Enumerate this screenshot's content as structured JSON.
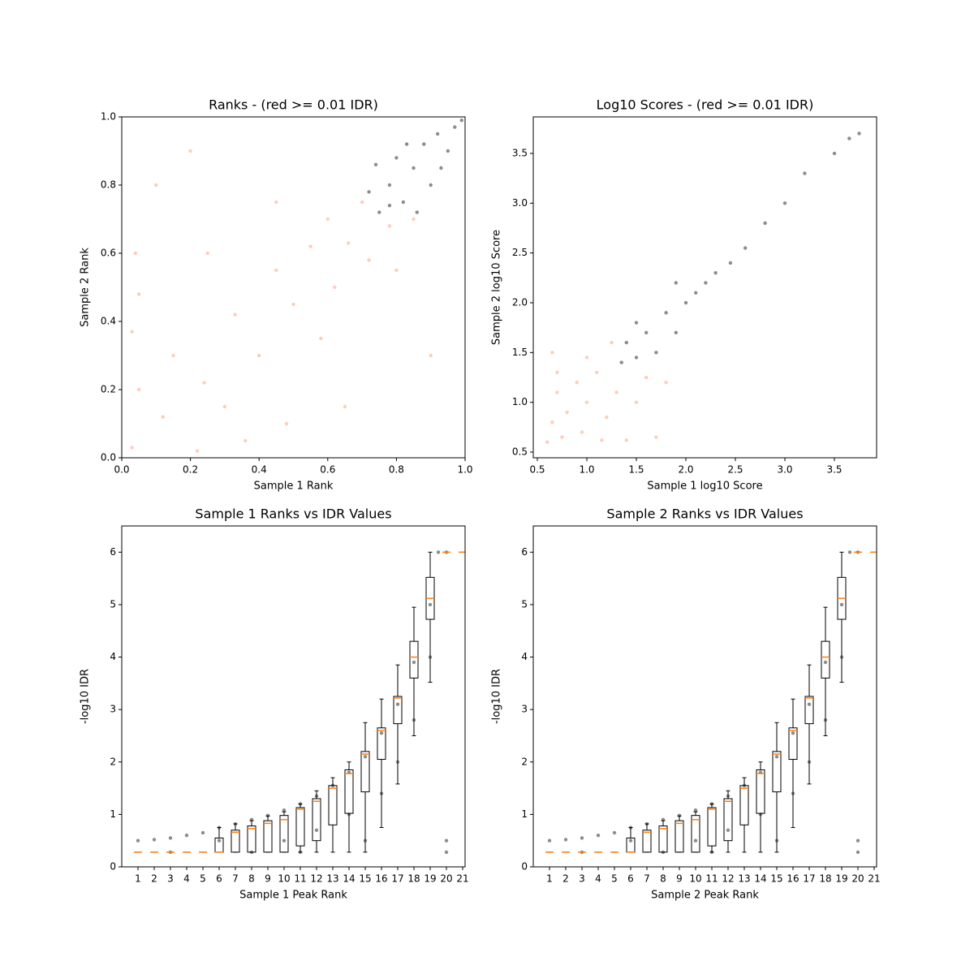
{
  "chart_data": [
    {
      "type": "scatter",
      "title": "Ranks - (red >= 0.01 IDR)",
      "x_label": "Sample 1 Rank",
      "y_label": "Sample 2 Rank",
      "xlim": [
        0,
        1
      ],
      "ylim": [
        0,
        1
      ],
      "xticks": [
        {
          "value": 0,
          "label": "0.0"
        },
        {
          "value": 0.2,
          "label": "0.2"
        },
        {
          "value": 0.4,
          "label": "0.4"
        },
        {
          "value": 0.6,
          "label": "0.6"
        },
        {
          "value": 0.8,
          "label": "0.8"
        },
        {
          "value": 1,
          "label": "1.0"
        }
      ],
      "yticks": [
        {
          "value": 0,
          "label": "0.0"
        },
        {
          "value": 0.2,
          "label": "0.2"
        },
        {
          "value": 0.4,
          "label": "0.4"
        },
        {
          "value": 0.6,
          "label": "0.6"
        },
        {
          "value": 0.8,
          "label": "0.8"
        },
        {
          "value": 1,
          "label": "1.0"
        }
      ],
      "series": [
        {
          "color": "#ff8f6e",
          "x": [
            0.03,
            0.05,
            0.03,
            0.05,
            0.04,
            0.12,
            0.15,
            0.22,
            0.24,
            0.3,
            0.33,
            0.36,
            0.4,
            0.45,
            0.48,
            0.5,
            0.55,
            0.58,
            0.6,
            0.62,
            0.66,
            0.7,
            0.72,
            0.78,
            0.8,
            0.85,
            0.9,
            0.25,
            0.1,
            0.2,
            0.65,
            0.45
          ],
          "y": [
            0.03,
            0.2,
            0.37,
            0.48,
            0.6,
            0.12,
            0.3,
            0.02,
            0.22,
            0.15,
            0.42,
            0.05,
            0.3,
            0.55,
            0.1,
            0.45,
            0.62,
            0.35,
            0.7,
            0.5,
            0.63,
            0.75,
            0.58,
            0.68,
            0.55,
            0.7,
            0.3,
            0.6,
            0.8,
            0.9,
            0.15,
            0.75
          ]
        },
        {
          "color": "#000000",
          "x": [
            0.72,
            0.75,
            0.78,
            0.8,
            0.82,
            0.85,
            0.88,
            0.9,
            0.92,
            0.95,
            0.97,
            0.99,
            0.74,
            0.86,
            0.93,
            0.78,
            0.83
          ],
          "y": [
            0.78,
            0.72,
            0.8,
            0.88,
            0.75,
            0.85,
            0.92,
            0.8,
            0.95,
            0.9,
            0.97,
            0.99,
            0.86,
            0.72,
            0.85,
            0.74,
            0.92
          ]
        }
      ]
    },
    {
      "type": "scatter",
      "title": "Log10 Scores - (red >= 0.01 IDR)",
      "x_label": "Sample 1 log10 Score",
      "y_label": "Sample 2 log10 Score",
      "xlim": [
        0.459,
        3.926
      ],
      "ylim": [
        0.443,
        3.867
      ],
      "xticks": [
        0.5,
        {
          "value": 1,
          "label": "1.0"
        },
        1.5,
        {
          "value": 2,
          "label": "2.0"
        },
        2.5,
        {
          "value": 3,
          "label": "3.0"
        },
        3.5
      ],
      "yticks": [
        0.5,
        {
          "value": 1,
          "label": "1.0"
        },
        1.5,
        {
          "value": 2,
          "label": "2.0"
        },
        2.5,
        {
          "value": 3,
          "label": "3.0"
        },
        3.5
      ],
      "series": [
        {
          "color": "#ff8f6e",
          "x": [
            0.6,
            0.65,
            0.7,
            0.75,
            0.8,
            0.9,
            0.95,
            1.0,
            1.1,
            1.15,
            1.2,
            1.3,
            1.4,
            1.5,
            1.6,
            1.7,
            1.8,
            0.65,
            0.7,
            1.25,
            1.0
          ],
          "y": [
            0.6,
            0.8,
            1.1,
            0.65,
            0.9,
            1.2,
            0.7,
            1.0,
            1.3,
            0.62,
            0.85,
            1.1,
            0.62,
            1.0,
            1.25,
            0.65,
            1.2,
            1.5,
            1.3,
            1.6,
            1.45
          ]
        },
        {
          "color": "#000000",
          "x": [
            1.35,
            1.4,
            1.5,
            1.6,
            1.7,
            1.8,
            1.9,
            2.0,
            2.1,
            2.2,
            2.3,
            2.45,
            2.6,
            2.8,
            3.0,
            3.2,
            3.5,
            3.65,
            3.75,
            1.9,
            1.5
          ],
          "y": [
            1.4,
            1.6,
            1.45,
            1.7,
            1.5,
            1.9,
            1.7,
            2.0,
            2.1,
            2.2,
            2.3,
            2.4,
            2.55,
            2.8,
            3.0,
            3.3,
            3.5,
            3.65,
            3.7,
            2.2,
            1.8
          ]
        }
      ]
    },
    {
      "type": "box",
      "title": "Sample 1 Ranks vs IDR Values",
      "x_label": "Sample 1 Peak Rank",
      "y_label": "-log10 IDR",
      "xlim": [
        0,
        21.15
      ],
      "ylim": [
        0,
        6.5
      ],
      "xticks": [
        1,
        2,
        3,
        4,
        5,
        6,
        7,
        8,
        9,
        10,
        11,
        12,
        13,
        14,
        15,
        16,
        17,
        18,
        19,
        20,
        21
      ],
      "yticks": [
        0,
        1,
        2,
        3,
        4,
        5,
        6
      ],
      "series": [
        {
          "color": "#000000",
          "x": [
            1,
            2,
            3,
            4,
            5,
            6,
            7,
            8,
            9,
            10,
            11,
            12,
            13,
            14,
            15,
            16,
            17,
            18,
            19,
            19.5,
            20,
            6,
            10,
            15,
            20,
            12,
            14,
            16,
            17,
            18,
            19,
            3,
            8,
            11,
            20
          ],
          "y": [
            0.5,
            0.52,
            0.55,
            0.6,
            0.65,
            0.75,
            0.82,
            0.9,
            0.98,
            1.08,
            1.2,
            1.35,
            1.55,
            1.8,
            2.1,
            2.55,
            3.1,
            3.9,
            5.0,
            6,
            6,
            0.5,
            0.5,
            0.5,
            0.5,
            0.7,
            1.0,
            1.4,
            2.0,
            2.8,
            4.0,
            0.28,
            0.28,
            0.28,
            0.28
          ]
        }
      ],
      "boxes": [
        {
          "position": 1,
          "median": 0.28,
          "q1": 0.28,
          "q3": 0.28,
          "whislo": 0.28,
          "whishi": 0.28
        },
        {
          "position": 2,
          "median": 0.28,
          "q1": 0.28,
          "q3": 0.28,
          "whislo": 0.28,
          "whishi": 0.28
        },
        {
          "position": 3,
          "median": 0.28,
          "q1": 0.28,
          "q3": 0.28,
          "whislo": 0.28,
          "whishi": 0.28
        },
        {
          "position": 4,
          "median": 0.28,
          "q1": 0.28,
          "q3": 0.28,
          "whislo": 0.28,
          "whishi": 0.28
        },
        {
          "position": 5,
          "median": 0.28,
          "q1": 0.28,
          "q3": 0.28,
          "whislo": 0.28,
          "whishi": 0.28
        },
        {
          "position": 6,
          "median": 0.28,
          "q1": 0.28,
          "q3": 0.55,
          "whislo": 0.28,
          "whishi": 0.75
        },
        {
          "position": 7,
          "median": 0.66,
          "q1": 0.28,
          "q3": 0.7,
          "whislo": 0.28,
          "whishi": 0.82
        },
        {
          "position": 8,
          "median": 0.73,
          "q1": 0.28,
          "q3": 0.78,
          "whislo": 0.28,
          "whishi": 0.88
        },
        {
          "position": 9,
          "median": 0.83,
          "q1": 0.28,
          "q3": 0.88,
          "whislo": 0.28,
          "whishi": 0.97
        },
        {
          "position": 10,
          "median": 0.9,
          "q1": 0.28,
          "q3": 0.98,
          "whislo": 0.28,
          "whishi": 1.05
        },
        {
          "position": 11,
          "median": 1.1,
          "q1": 0.4,
          "q3": 1.13,
          "whislo": 0.28,
          "whishi": 1.2
        },
        {
          "position": 12,
          "median": 1.25,
          "q1": 0.5,
          "q3": 1.3,
          "whislo": 0.28,
          "whishi": 1.45
        },
        {
          "position": 13,
          "median": 1.5,
          "q1": 0.8,
          "q3": 1.55,
          "whislo": 0.28,
          "whishi": 1.7
        },
        {
          "position": 14,
          "median": 1.78,
          "q1": 1.02,
          "q3": 1.85,
          "whislo": 0.28,
          "whishi": 2.0
        },
        {
          "position": 15,
          "median": 2.15,
          "q1": 1.43,
          "q3": 2.2,
          "whislo": 0.28,
          "whishi": 2.75
        },
        {
          "position": 16,
          "median": 2.6,
          "q1": 2.05,
          "q3": 2.65,
          "whislo": 0.75,
          "whishi": 3.2
        },
        {
          "position": 17,
          "median": 3.22,
          "q1": 2.73,
          "q3": 3.25,
          "whislo": 1.58,
          "whishi": 3.85
        },
        {
          "position": 18,
          "median": 4.0,
          "q1": 3.6,
          "q3": 4.3,
          "whislo": 2.5,
          "whishi": 4.95
        },
        {
          "position": 19,
          "median": 5.12,
          "q1": 4.72,
          "q3": 5.52,
          "whislo": 3.52,
          "whishi": 6.0
        },
        {
          "position": 20,
          "median": 6,
          "q1": 6,
          "q3": 6,
          "whislo": 6,
          "whishi": 6
        },
        {
          "position": 21,
          "median": 6,
          "q1": 6,
          "q3": 6,
          "whislo": 6,
          "whishi": 6
        }
      ]
    },
    {
      "type": "box",
      "title": "Sample 2 Ranks vs IDR Values",
      "x_label": "Sample 2 Peak Rank",
      "y_label": "-log10 IDR",
      "xlim": [
        0,
        21.15
      ],
      "ylim": [
        0,
        6.5
      ],
      "xticks": [
        1,
        2,
        3,
        4,
        5,
        6,
        7,
        8,
        9,
        10,
        11,
        12,
        13,
        14,
        15,
        16,
        17,
        18,
        19,
        20,
        21
      ],
      "yticks": [
        0,
        1,
        2,
        3,
        4,
        5,
        6
      ],
      "series": [
        {
          "color": "#000000",
          "x": [
            1,
            2,
            3,
            4,
            5,
            6,
            7,
            8,
            9,
            10,
            11,
            12,
            13,
            14,
            15,
            16,
            17,
            18,
            19,
            19.5,
            20,
            6,
            10,
            15,
            20,
            12,
            14,
            16,
            17,
            18,
            19,
            3,
            8,
            11,
            20
          ],
          "y": [
            0.5,
            0.52,
            0.55,
            0.6,
            0.65,
            0.75,
            0.82,
            0.9,
            0.98,
            1.08,
            1.2,
            1.35,
            1.55,
            1.8,
            2.1,
            2.55,
            3.1,
            3.9,
            5.0,
            6,
            6,
            0.5,
            0.5,
            0.5,
            0.5,
            0.7,
            1.0,
            1.4,
            2.0,
            2.8,
            4.0,
            0.28,
            0.28,
            0.28,
            0.28
          ]
        }
      ],
      "boxes": [
        {
          "position": 1,
          "median": 0.28,
          "q1": 0.28,
          "q3": 0.28,
          "whislo": 0.28,
          "whishi": 0.28
        },
        {
          "position": 2,
          "median": 0.28,
          "q1": 0.28,
          "q3": 0.28,
          "whislo": 0.28,
          "whishi": 0.28
        },
        {
          "position": 3,
          "median": 0.28,
          "q1": 0.28,
          "q3": 0.28,
          "whislo": 0.28,
          "whishi": 0.28
        },
        {
          "position": 4,
          "median": 0.28,
          "q1": 0.28,
          "q3": 0.28,
          "whislo": 0.28,
          "whishi": 0.28
        },
        {
          "position": 5,
          "median": 0.28,
          "q1": 0.28,
          "q3": 0.28,
          "whislo": 0.28,
          "whishi": 0.28
        },
        {
          "position": 6,
          "median": 0.28,
          "q1": 0.28,
          "q3": 0.55,
          "whislo": 0.28,
          "whishi": 0.75
        },
        {
          "position": 7,
          "median": 0.66,
          "q1": 0.28,
          "q3": 0.7,
          "whislo": 0.28,
          "whishi": 0.82
        },
        {
          "position": 8,
          "median": 0.73,
          "q1": 0.28,
          "q3": 0.78,
          "whislo": 0.28,
          "whishi": 0.88
        },
        {
          "position": 9,
          "median": 0.83,
          "q1": 0.28,
          "q3": 0.88,
          "whislo": 0.28,
          "whishi": 0.97
        },
        {
          "position": 10,
          "median": 0.9,
          "q1": 0.28,
          "q3": 0.98,
          "whislo": 0.28,
          "whishi": 1.05
        },
        {
          "position": 11,
          "median": 1.1,
          "q1": 0.4,
          "q3": 1.13,
          "whislo": 0.28,
          "whishi": 1.2
        },
        {
          "position": 12,
          "median": 1.25,
          "q1": 0.5,
          "q3": 1.3,
          "whislo": 0.28,
          "whishi": 1.45
        },
        {
          "position": 13,
          "median": 1.5,
          "q1": 0.8,
          "q3": 1.55,
          "whislo": 0.28,
          "whishi": 1.7
        },
        {
          "position": 14,
          "median": 1.78,
          "q1": 1.02,
          "q3": 1.85,
          "whislo": 0.28,
          "whishi": 2.0
        },
        {
          "position": 15,
          "median": 2.15,
          "q1": 1.43,
          "q3": 2.2,
          "whislo": 0.28,
          "whishi": 2.75
        },
        {
          "position": 16,
          "median": 2.6,
          "q1": 2.05,
          "q3": 2.65,
          "whislo": 0.75,
          "whishi": 3.2
        },
        {
          "position": 17,
          "median": 3.22,
          "q1": 2.73,
          "q3": 3.25,
          "whislo": 1.58,
          "whishi": 3.85
        },
        {
          "position": 18,
          "median": 4.0,
          "q1": 3.6,
          "q3": 4.3,
          "whislo": 2.5,
          "whishi": 4.95
        },
        {
          "position": 19,
          "median": 5.12,
          "q1": 4.72,
          "q3": 5.52,
          "whislo": 3.52,
          "whishi": 6.0
        },
        {
          "position": 20,
          "median": 6,
          "q1": 6,
          "q3": 6,
          "whislo": 6,
          "whishi": 6
        },
        {
          "position": 21,
          "median": 6,
          "q1": 6,
          "q3": 6,
          "whislo": 6,
          "whishi": 6
        }
      ]
    }
  ]
}
